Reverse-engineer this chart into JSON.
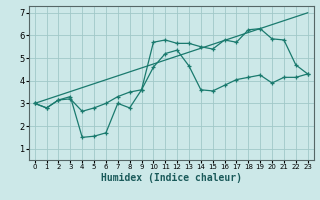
{
  "title": "",
  "xlabel": "Humidex (Indice chaleur)",
  "ylabel": "",
  "bg_color": "#cce8e8",
  "grid_color": "#a0c8c8",
  "line_color": "#1a7a6e",
  "xlim": [
    -0.5,
    23.5
  ],
  "ylim": [
    0.5,
    7.3
  ],
  "xticks": [
    0,
    1,
    2,
    3,
    4,
    5,
    6,
    7,
    8,
    9,
    10,
    11,
    12,
    13,
    14,
    15,
    16,
    17,
    18,
    19,
    20,
    21,
    22,
    23
  ],
  "yticks": [
    1,
    2,
    3,
    4,
    5,
    6,
    7
  ],
  "line1_x": [
    0,
    1,
    2,
    3,
    4,
    5,
    6,
    7,
    8,
    9,
    10,
    11,
    12,
    13,
    14,
    15,
    16,
    17,
    18,
    19,
    20,
    21,
    22,
    23
  ],
  "line1_y": [
    3.0,
    2.8,
    3.15,
    3.2,
    2.65,
    2.8,
    3.0,
    3.3,
    3.5,
    3.6,
    5.7,
    5.8,
    5.65,
    5.65,
    5.5,
    5.4,
    5.8,
    5.7,
    6.25,
    6.3,
    5.85,
    5.8,
    4.7,
    4.3
  ],
  "line2_x": [
    0,
    1,
    2,
    3,
    4,
    5,
    6,
    7,
    8,
    9,
    10,
    11,
    12,
    13,
    14,
    15,
    16,
    17,
    18,
    19,
    20,
    21,
    22,
    23
  ],
  "line2_y": [
    3.0,
    2.8,
    3.15,
    3.3,
    1.5,
    1.55,
    1.7,
    3.0,
    2.8,
    3.6,
    4.6,
    5.2,
    5.35,
    4.65,
    3.6,
    3.55,
    3.8,
    4.05,
    4.15,
    4.25,
    3.9,
    4.15,
    4.15,
    4.3
  ],
  "line3_x": [
    0,
    23
  ],
  "line3_y": [
    3.0,
    7.0
  ]
}
